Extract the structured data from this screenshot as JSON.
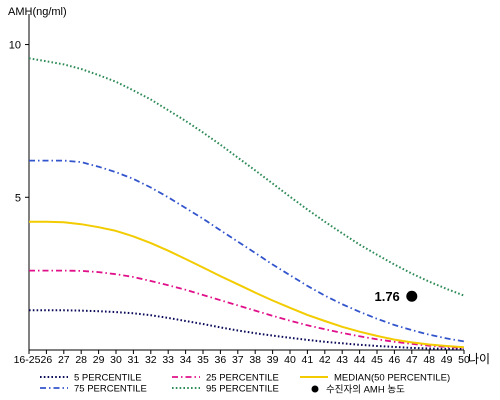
{
  "chart_data": {
    "type": "line",
    "ylabel": "AMH(ng/ml)",
    "xlabel": "나이",
    "categories": [
      "16-25",
      "26",
      "27",
      "28",
      "29",
      "30",
      "31",
      "32",
      "33",
      "34",
      "35",
      "36",
      "37",
      "38",
      "39",
      "40",
      "41",
      "42",
      "43",
      "44",
      "45",
      "46",
      "47",
      "48",
      "49",
      "50"
    ],
    "yticks": [
      5,
      10
    ],
    "ylim": [
      0,
      11
    ],
    "grid": false,
    "legend_position": "bottom",
    "series": [
      {
        "name": "5 PERCENTILE",
        "color": "#0a0a5a",
        "dash": "dotted",
        "values": [
          1.3,
          1.3,
          1.3,
          1.29,
          1.27,
          1.24,
          1.2,
          1.14,
          1.05,
          0.95,
          0.85,
          0.74,
          0.64,
          0.55,
          0.47,
          0.4,
          0.33,
          0.27,
          0.22,
          0.17,
          0.13,
          0.1,
          0.07,
          0.05,
          0.04,
          0.03
        ]
      },
      {
        "name": "25 PERCENTILE",
        "color": "#e0108a",
        "dash": "dashdot",
        "values": [
          2.6,
          2.6,
          2.6,
          2.59,
          2.55,
          2.48,
          2.39,
          2.26,
          2.12,
          1.97,
          1.8,
          1.63,
          1.46,
          1.29,
          1.12,
          0.96,
          0.81,
          0.68,
          0.56,
          0.45,
          0.35,
          0.27,
          0.2,
          0.14,
          0.1,
          0.07
        ]
      },
      {
        "name": "MEDIAN(50 PERCENTILE)",
        "color": "#f2cc00",
        "dash": "solid",
        "values": [
          4.2,
          4.2,
          4.18,
          4.12,
          4.02,
          3.9,
          3.72,
          3.5,
          3.25,
          2.98,
          2.7,
          2.42,
          2.15,
          1.88,
          1.62,
          1.38,
          1.15,
          0.95,
          0.76,
          0.6,
          0.46,
          0.34,
          0.25,
          0.18,
          0.13,
          0.09
        ]
      },
      {
        "name": "75 PERCENTILE",
        "color": "#3355cc",
        "dash": "dashdot",
        "values": [
          6.2,
          6.2,
          6.2,
          6.15,
          6.0,
          5.82,
          5.6,
          5.32,
          5.0,
          4.65,
          4.3,
          3.92,
          3.55,
          3.18,
          2.8,
          2.45,
          2.1,
          1.78,
          1.5,
          1.25,
          1.02,
          0.82,
          0.65,
          0.5,
          0.38,
          0.28
        ]
      },
      {
        "name": "95 PERCENTILE",
        "color": "#2e8b57",
        "dash": "dotted",
        "values": [
          9.55,
          9.45,
          9.35,
          9.2,
          9.0,
          8.78,
          8.5,
          8.2,
          7.85,
          7.5,
          7.12,
          6.72,
          6.3,
          5.88,
          5.45,
          5.02,
          4.6,
          4.2,
          3.82,
          3.45,
          3.12,
          2.8,
          2.5,
          2.24,
          2.0,
          1.78
        ]
      }
    ],
    "marker": {
      "name": "수진자의 AMH 농도",
      "category": "47",
      "value": 1.76,
      "label": "1.76",
      "color": "#000000"
    }
  }
}
